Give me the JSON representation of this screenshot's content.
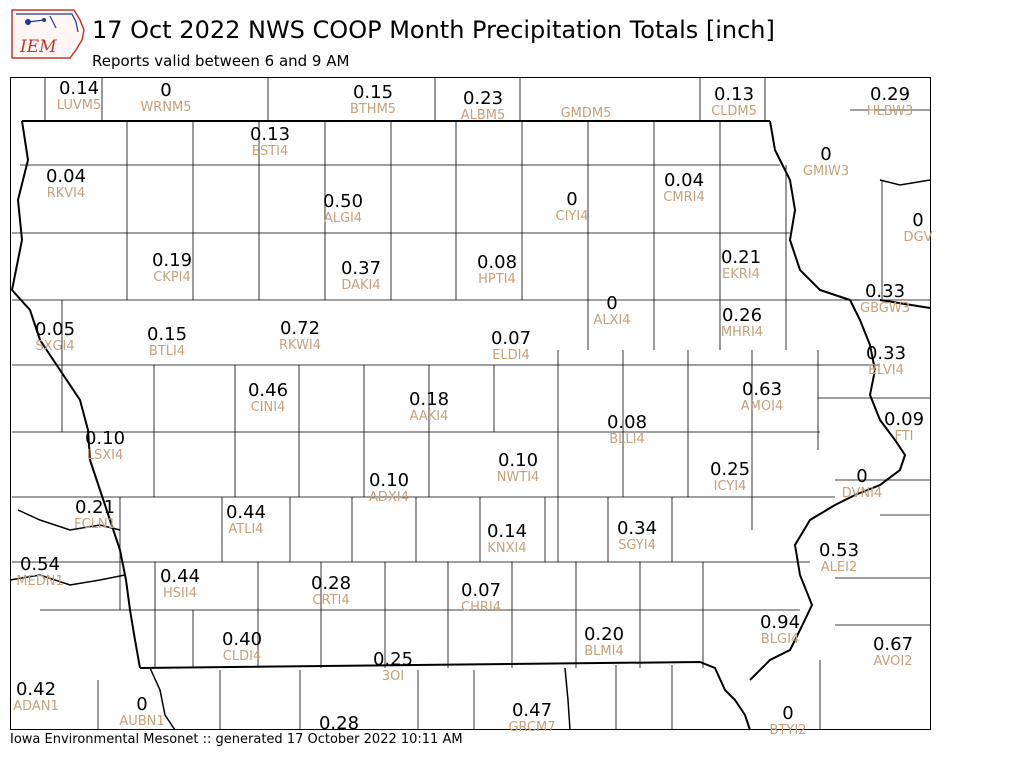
{
  "header": {
    "logo_text": "IEM",
    "title": "17 Oct 2022 NWS COOP Month Precipitation Totals [inch]",
    "subtitle": "Reports valid between 6 and 9 AM"
  },
  "footer": {
    "text": "Iowa Environmental Mesonet :: generated 17 October 2022 10:11 AM"
  },
  "colors": {
    "value_text": "#000000",
    "station_text": "#c8a07a",
    "logo_red": "#c0392b",
    "logo_blue": "#1f3a93"
  },
  "stations": [
    {
      "id": "LUVM5",
      "value": "0.14"
    },
    {
      "id": "WRNM5",
      "value": "0"
    },
    {
      "id": "BTHM5",
      "value": "0.15"
    },
    {
      "id": "ALBM5",
      "value": "0.23"
    },
    {
      "id": "GMDM5",
      "value": ""
    },
    {
      "id": "CLDM5",
      "value": "0.13"
    },
    {
      "id": "HLBW3",
      "value": "0.29"
    },
    {
      "id": "ESTI4",
      "value": "0.13"
    },
    {
      "id": "RKVI4",
      "value": "0.04"
    },
    {
      "id": "ALGI4",
      "value": "0.50"
    },
    {
      "id": "CIYI4",
      "value": "0"
    },
    {
      "id": "CMRI4",
      "value": "0.04"
    },
    {
      "id": "GMIW3",
      "value": "0"
    },
    {
      "id": "DGV",
      "value": "0"
    },
    {
      "id": "CKPI4",
      "value": "0.19"
    },
    {
      "id": "DAKI4",
      "value": "0.37"
    },
    {
      "id": "HPTI4",
      "value": "0.08"
    },
    {
      "id": "EKRI4",
      "value": "0.21"
    },
    {
      "id": "GBGW3",
      "value": "0.33"
    },
    {
      "id": "SXGI4",
      "value": "0.05"
    },
    {
      "id": "BTLI4",
      "value": "0.15"
    },
    {
      "id": "RKWI4",
      "value": "0.72"
    },
    {
      "id": "ALXI4",
      "value": "0"
    },
    {
      "id": "ELDI4",
      "value": "0.07"
    },
    {
      "id": "MHRI4",
      "value": "0.26"
    },
    {
      "id": "BLVI4",
      "value": "0.33"
    },
    {
      "id": "CINI4",
      "value": "0.46"
    },
    {
      "id": "AAKI4",
      "value": "0.18"
    },
    {
      "id": "AMOI4",
      "value": "0.63"
    },
    {
      "id": "FTI",
      "value": "0.09"
    },
    {
      "id": "LSXI4",
      "value": "0.10"
    },
    {
      "id": "BLLI4",
      "value": "0.08"
    },
    {
      "id": "NWTI4",
      "value": "0.10"
    },
    {
      "id": "ICYI4",
      "value": "0.25"
    },
    {
      "id": "DVNI4",
      "value": "0"
    },
    {
      "id": "ADXI4",
      "value": "0.10"
    },
    {
      "id": "FCLN1",
      "value": "0.21"
    },
    {
      "id": "ATLI4",
      "value": "0.44"
    },
    {
      "id": "KNXI4",
      "value": "0.14"
    },
    {
      "id": "SGYI4",
      "value": "0.34"
    },
    {
      "id": "ALEI2",
      "value": "0.53"
    },
    {
      "id": "MEDN1",
      "value": "0.54"
    },
    {
      "id": "HSII4",
      "value": "0.44"
    },
    {
      "id": "CRTI4",
      "value": "0.28"
    },
    {
      "id": "CHRI4",
      "value": "0.07"
    },
    {
      "id": "BLMI4",
      "value": "0.20"
    },
    {
      "id": "BLGI4",
      "value": "0.94"
    },
    {
      "id": "AVOI2",
      "value": "0.67"
    },
    {
      "id": "CLDI4",
      "value": "0.40"
    },
    {
      "id": "3OI",
      "value": "0.25"
    },
    {
      "id": "ADAN1",
      "value": "0.42"
    },
    {
      "id": "AUBN1",
      "value": "0"
    },
    {
      "id": "GRCM7",
      "value": "0.47"
    },
    {
      "id": "BTYI2",
      "value": "0"
    },
    {
      "id": "",
      "value": "0.28"
    }
  ]
}
